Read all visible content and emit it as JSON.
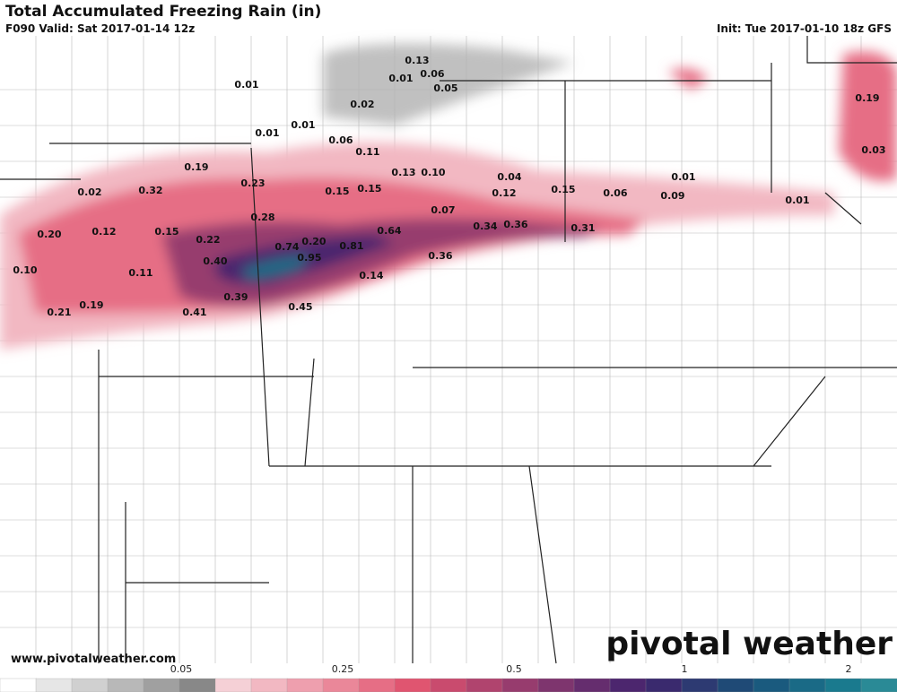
{
  "header": {
    "title": "Total Accumulated Freezing Rain (in)",
    "valid": "F090 Valid: Sat 2017-01-14 12z",
    "init": "Init: Tue 2017-01-10 18z GFS"
  },
  "map_labels": [
    "0.13",
    "0.06",
    "0.01",
    "0.05",
    "0.01",
    "0.02",
    "0.01",
    "0.01",
    "0.06",
    "0.11",
    "0.13",
    "0.10",
    "0.04",
    "0.01",
    "0.19",
    "0.23",
    "0.02",
    "0.32",
    "0.15",
    "0.15",
    "0.12",
    "0.15",
    "0.06",
    "0.09",
    "0.01",
    "0.19",
    "0.03",
    "0.07",
    "0.28",
    "0.20",
    "0.12",
    "0.15",
    "0.22",
    "0.64",
    "0.34",
    "0.36",
    "0.31",
    "0.74",
    "0.20",
    "0.81",
    "0.95",
    "0.36",
    "0.10",
    "0.11",
    "0.40",
    "0.14",
    "0.39",
    "0.19",
    "0.21",
    "0.41",
    "0.45"
  ],
  "footer": {
    "website": "www.pivotalweather.com",
    "logo": "pivotal weather"
  },
  "colorbar": {
    "colors": [
      "#ffffff",
      "#e6e6e6",
      "#d0d0d0",
      "#b8b8b8",
      "#a0a0a0",
      "#888888",
      "#f5d0d6",
      "#f2b8c2",
      "#ee9fae",
      "#ea8799",
      "#e66e85",
      "#e05570",
      "#c94b6e",
      "#b0446e",
      "#973c6e",
      "#7e356e",
      "#652d6e",
      "#4c266e",
      "#3a2a6e",
      "#2d3a72",
      "#1f4a76",
      "#1a5a7e",
      "#1a6a86",
      "#1a7a8e",
      "#2a8a96"
    ],
    "labels": [
      "0.05",
      "0.25",
      "0.5",
      "1",
      "2"
    ]
  }
}
